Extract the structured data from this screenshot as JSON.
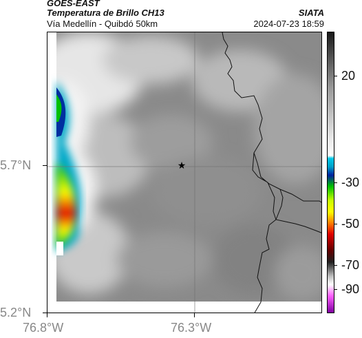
{
  "header": {
    "satellite": "GOES-EAST",
    "product": "Temperatura de Brillo CH13",
    "route": "Vía Medellín - Quibdó 50km",
    "agency": "SIATA",
    "datetime": "2024-07-23 18:59"
  },
  "map": {
    "lat_ticks": [
      "5.7°N",
      "5.2°N"
    ],
    "lon_ticks": [
      "76.8°W",
      "76.3°W"
    ],
    "center_marker": "star-icon"
  },
  "colorbar": {
    "tick_labels": [
      "20",
      "-30",
      "-50",
      "-70",
      "-90"
    ],
    "colors": [
      "#000000",
      "#ffffff",
      "#00a8c8",
      "#0020a0",
      "#00c000",
      "#ffff00",
      "#ff8000",
      "#e00000",
      "#600000",
      "#808080",
      "#ff60ff",
      "#8000a0"
    ]
  }
}
